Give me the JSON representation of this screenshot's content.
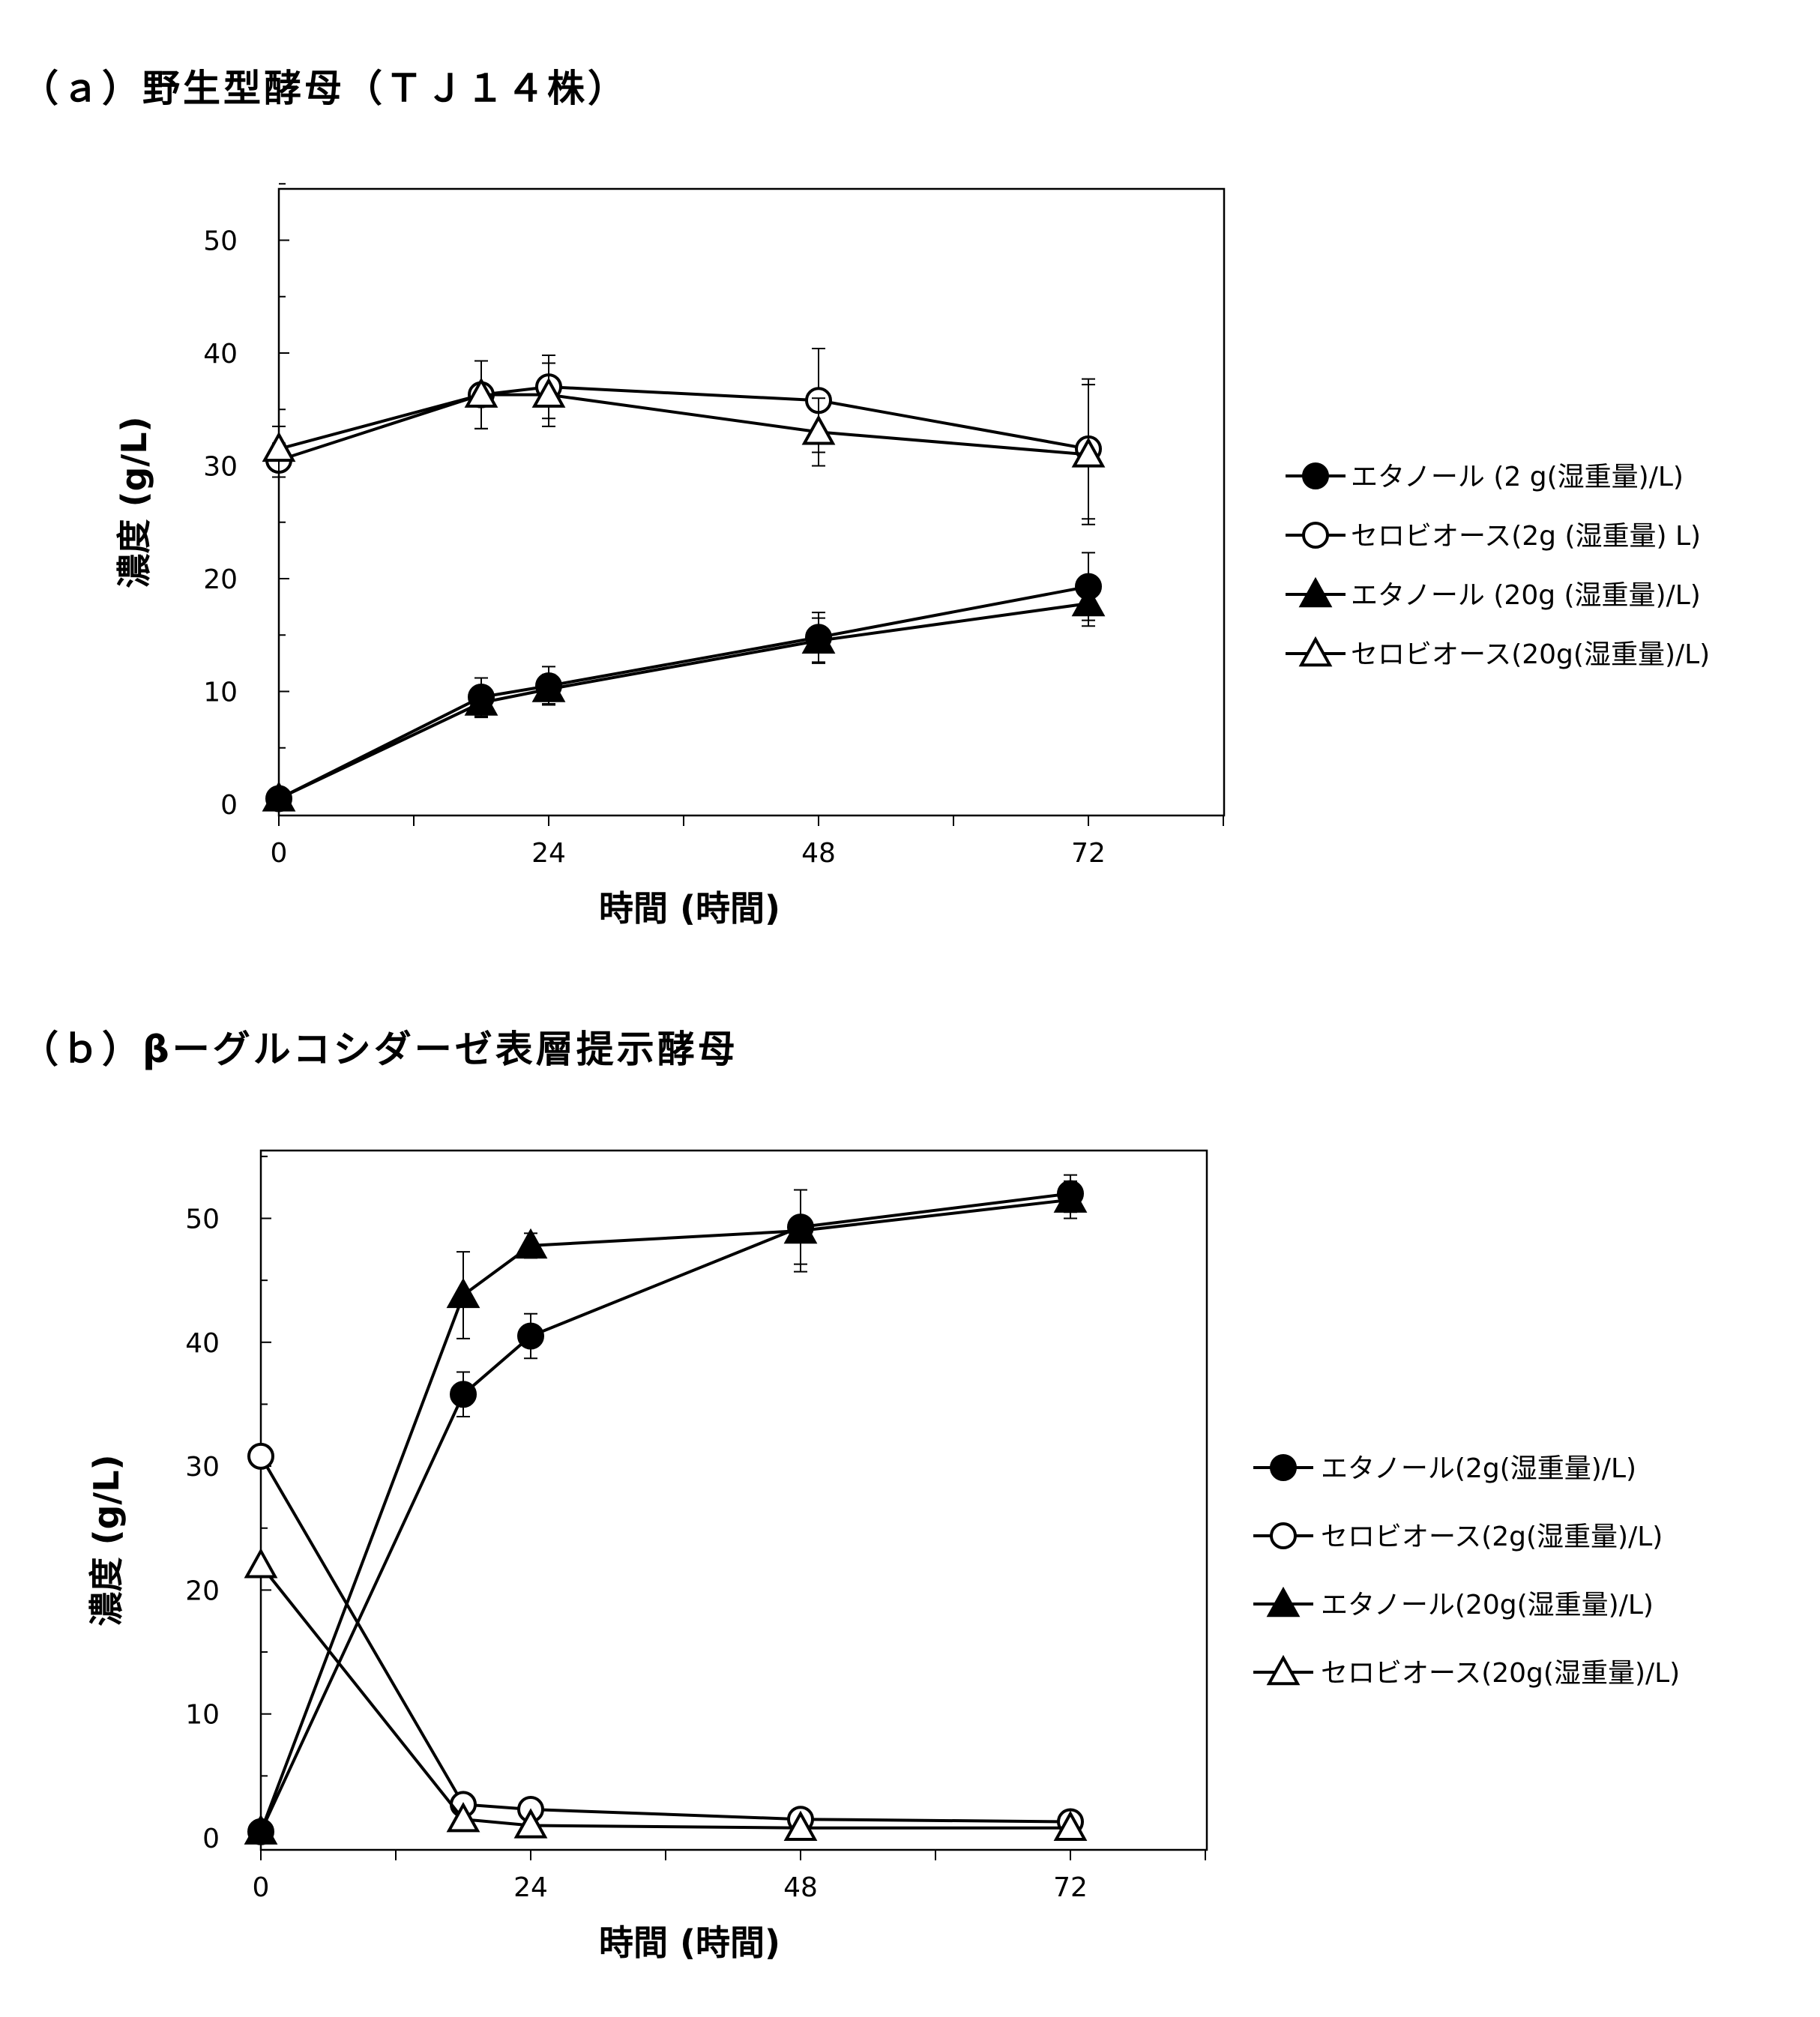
{
  "panels": [
    {
      "title": "（ａ）野生型酵母（ＴＪ１４株）"
    },
    {
      "title": "（ｂ）βーグルコシダーゼ表層提示酵母"
    }
  ],
  "chart_data": [
    {
      "type": "line",
      "xlabel": "時間 (時間)",
      "ylabel": "濃度 (g/L)",
      "x_ticks": [
        "0",
        "24",
        "48",
        "72"
      ],
      "y_ticks": [
        "0",
        "10",
        "20",
        "30",
        "40",
        "50"
      ],
      "xlim": [
        0,
        84
      ],
      "ylim": [
        0,
        55
      ],
      "grid": false,
      "legend_position": "right",
      "series": [
        {
          "name": "エタノール (2 g(湿重量)/L)",
          "marker": "filled-circle",
          "x": [
            0,
            18,
            24,
            48,
            72
          ],
          "y": [
            0.5,
            9.5,
            10.5,
            14.8,
            19.3
          ],
          "err": [
            0.3,
            1.7,
            1.7,
            2.2,
            3.0
          ]
        },
        {
          "name": "セロビオース(2g (湿重量) L)",
          "marker": "open-circle",
          "x": [
            0,
            18,
            24,
            48,
            72
          ],
          "y": [
            30.5,
            36.3,
            37.0,
            35.8,
            31.5
          ],
          "err": [
            1.5,
            3.0,
            2.8,
            4.6,
            6.2
          ]
        },
        {
          "name": "エタノール (20g (湿重量)/L)",
          "marker": "filled-triangle",
          "x": [
            0,
            18,
            24,
            48,
            72
          ],
          "y": [
            0.5,
            9.0,
            10.2,
            14.5,
            17.8
          ],
          "err": [
            0.3,
            1.3,
            1.3,
            2.0,
            2.0
          ]
        },
        {
          "name": "セロビオース(20g(湿重量)/L)",
          "marker": "open-triangle",
          "x": [
            0,
            18,
            24,
            48,
            72
          ],
          "y": [
            31.5,
            36.3,
            36.3,
            33.0,
            31.0
          ],
          "err": [
            2.0,
            3.0,
            2.8,
            3.0,
            6.2
          ]
        }
      ]
    },
    {
      "type": "line",
      "xlabel": "時間 (時間)",
      "ylabel": "濃度 (g/L)",
      "x_ticks": [
        "0",
        "24",
        "48",
        "72"
      ],
      "y_ticks": [
        "0",
        "10",
        "20",
        "30",
        "40",
        "50"
      ],
      "xlim": [
        0,
        84
      ],
      "ylim": [
        0,
        55
      ],
      "grid": false,
      "legend_position": "right",
      "series": [
        {
          "name": "エタノール(2g(湿重量)/L)",
          "marker": "filled-circle",
          "x": [
            0,
            18,
            24,
            48,
            72
          ],
          "y": [
            0.5,
            35.8,
            40.5,
            49.3,
            52.0
          ],
          "err": [
            0.3,
            1.8,
            1.8,
            3.0,
            1.5
          ]
        },
        {
          "name": "セロビオース(2g(湿重量)/L)",
          "marker": "open-circle",
          "x": [
            0,
            18,
            24,
            48,
            72
          ],
          "y": [
            30.8,
            2.7,
            2.3,
            1.5,
            1.3
          ],
          "err": [
            0,
            0,
            0,
            0,
            0
          ]
        },
        {
          "name": "エタノール(20g(湿重量)/L)",
          "marker": "filled-triangle",
          "x": [
            0,
            18,
            24,
            48,
            72
          ],
          "y": [
            0.5,
            43.8,
            47.8,
            49.0,
            51.5
          ],
          "err": [
            0.3,
            3.5,
            1.0,
            3.3,
            1.5
          ]
        },
        {
          "name": "セロビオース(20g(湿重量)/L)",
          "marker": "open-triangle",
          "x": [
            0,
            18,
            24,
            48,
            72
          ],
          "y": [
            22.0,
            1.5,
            1.0,
            0.8,
            0.8
          ],
          "err": [
            0,
            0,
            0,
            0,
            0
          ]
        }
      ]
    }
  ]
}
